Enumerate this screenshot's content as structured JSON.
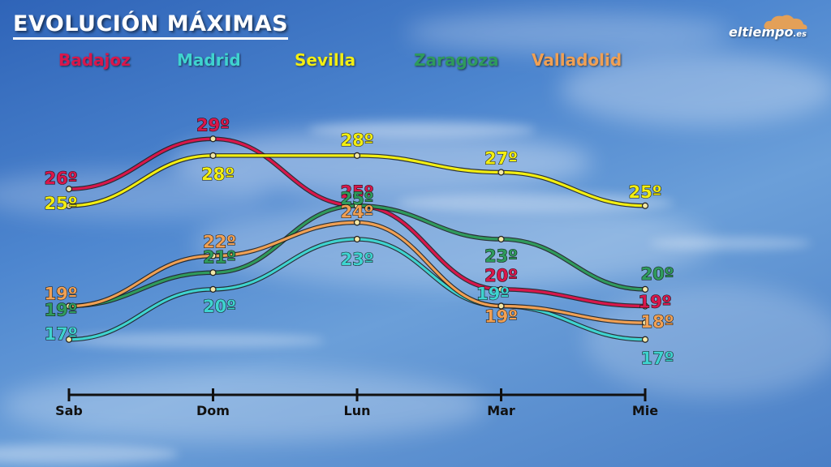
{
  "header": {
    "title": "EVOLUCIÓN MÁXIMAS",
    "brand_main": "eltiempo",
    "brand_suffix": ".es"
  },
  "colors": {
    "axis": "#111111",
    "point_fill": "#f2e7a8"
  },
  "chart_data": {
    "type": "line",
    "title": "EVOLUCIÓN MÁXIMAS",
    "categories": [
      "Sab",
      "Dom",
      "Lun",
      "Mar",
      "Mie"
    ],
    "ylim": [
      15,
      31
    ],
    "grid": false,
    "legend_placement": "top",
    "unit": "º",
    "series": [
      {
        "name": "Badajoz",
        "color": "#d8174b",
        "values": [
          26,
          29,
          25,
          20,
          19
        ]
      },
      {
        "name": "Madrid",
        "color": "#3fd3cf",
        "values": [
          17,
          20,
          23,
          19,
          17
        ]
      },
      {
        "name": "Sevilla",
        "color": "#f2ee12",
        "values": [
          25,
          28,
          28,
          27,
          25
        ]
      },
      {
        "name": "Zaragoza",
        "color": "#2f9a5c",
        "values": [
          19,
          21,
          25,
          23,
          20
        ]
      },
      {
        "name": "Valladolid",
        "color": "#f0a054",
        "values": [
          19,
          22,
          24,
          19,
          18
        ]
      }
    ]
  }
}
